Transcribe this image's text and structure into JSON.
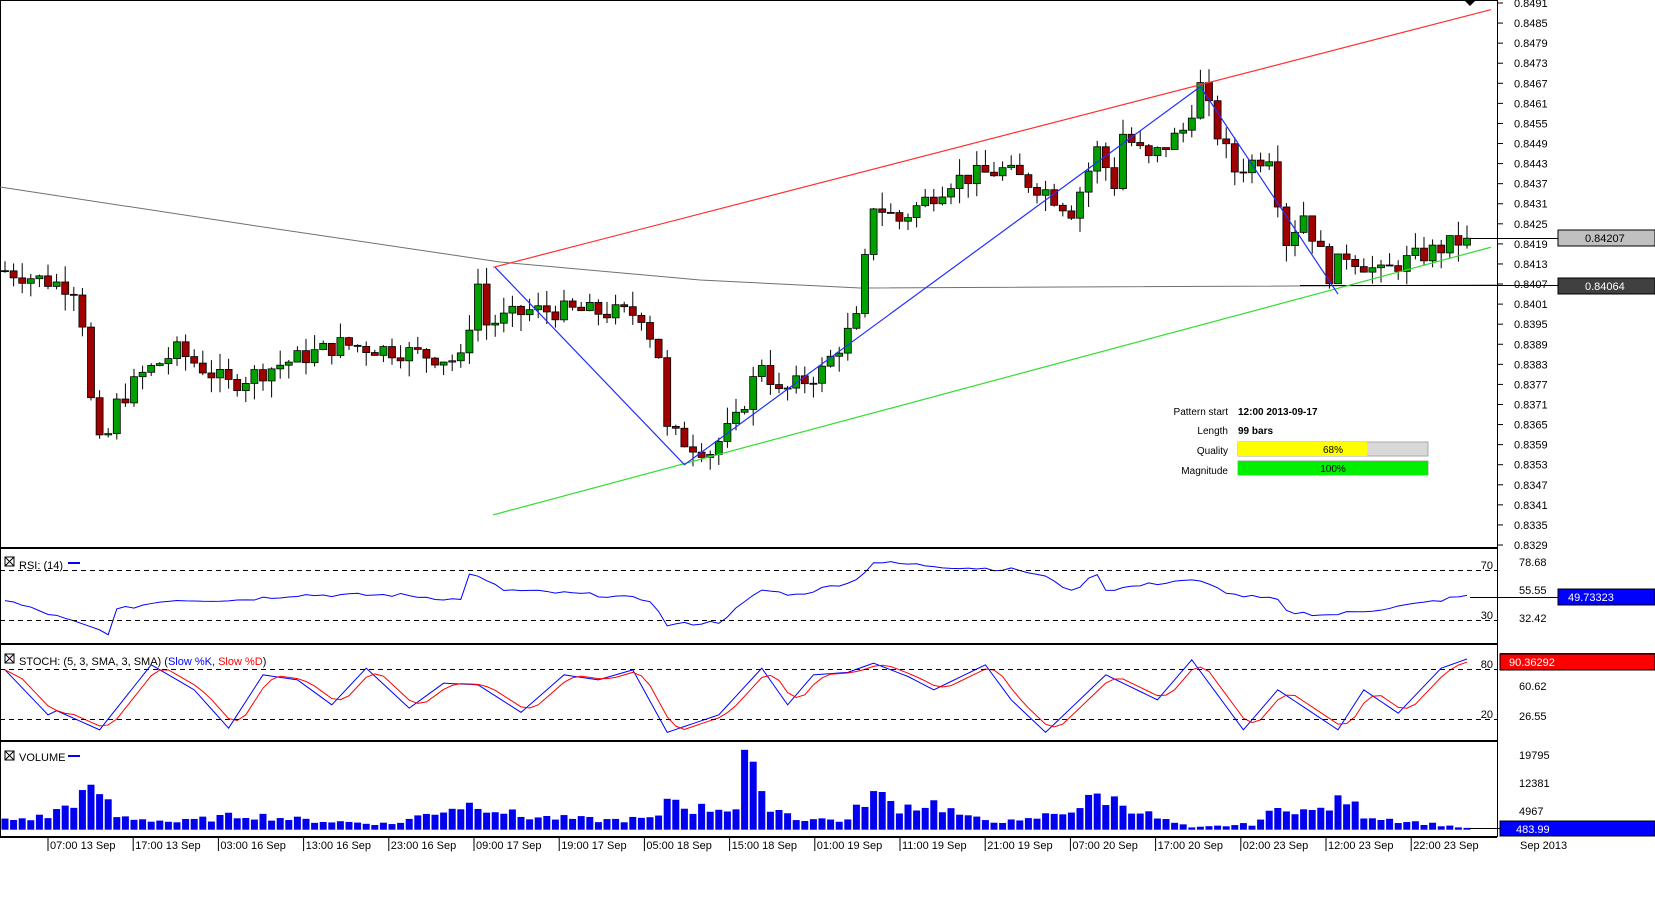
{
  "colors": {
    "up": "#00a000",
    "down": "#a00000",
    "resistance": "#ff3030",
    "support": "#33dd33",
    "zigzag": "#2030ff",
    "ma": "#707070",
    "rsi": "#0000ff",
    "stoch_k": "#0000ff",
    "stoch_d": "#ff0000",
    "volume": "#0000ee"
  },
  "price_axis": {
    "labels": [
      "0.8491",
      "0.8485",
      "0.8479",
      "0.8473",
      "0.8467",
      "0.8461",
      "0.8455",
      "0.8449",
      "0.8443",
      "0.8437",
      "0.8431",
      "0.8425",
      "0.8419",
      "0.8413",
      "0.8407",
      "0.8401",
      "0.8395",
      "0.8389",
      "0.8383",
      "0.8377",
      "0.8371",
      "0.8365",
      "0.8359",
      "0.8353",
      "0.8347",
      "0.8341",
      "0.8335",
      "0.8329"
    ],
    "last_price": "0.84207",
    "ma_value": "0.84064"
  },
  "pattern": {
    "start_label": "Pattern start",
    "start_value": "12:00 2013-09-17",
    "length_label": "Length",
    "length_value": "99 bars",
    "quality_label": "Quality",
    "quality_value": "68%",
    "quality_pct": 68,
    "magnitude_label": "Magnitude",
    "magnitude_value": "100%",
    "magnitude_pct": 100
  },
  "rsi": {
    "title": "RSI: (14)",
    "level_high": "70",
    "level_low": "30",
    "axis": [
      "78.68",
      "55.55",
      "32.42"
    ],
    "value": "49.73323"
  },
  "stoch": {
    "title": "STOCH: (5, 3, SMA, 3, SMA) (",
    "k_label": "Slow %K,",
    "d_label": "Slow %D",
    "close_paren": ")",
    "level_high": "80",
    "level_low": "20",
    "axis": [
      "60.62",
      "26.55"
    ],
    "value": "90.36292"
  },
  "volume": {
    "title": "VOLUME",
    "axis": [
      "19795",
      "12381",
      "4967"
    ],
    "value": "483.99"
  },
  "time_axis": [
    "2013",
    "07:00 13 Sep",
    "17:00 13 Sep",
    "03:00 16 Sep",
    "13:00 16 Sep",
    "23:00 16 Sep",
    "09:00 17 Sep",
    "19:00 17 Sep",
    "05:00 18 Sep",
    "15:00 18 Sep",
    "01:00 19 Sep",
    "11:00 19 Sep",
    "21:00 19 Sep",
    "07:00 20 Sep",
    "17:00 20 Sep",
    "02:00 23 Sep",
    "12:00 23 Sep",
    "22:00 23 Sep"
  ],
  "time_axis_end": "Sep 2013",
  "chart_data": {
    "type": "candlestick",
    "title": "",
    "bars": 171,
    "ylim": [
      0.8329,
      0.8491
    ],
    "close_keypoints": [
      [
        0,
        0.8411
      ],
      [
        8,
        0.8406
      ],
      [
        9,
        0.8396
      ],
      [
        10,
        0.8372
      ],
      [
        11,
        0.8359
      ],
      [
        12,
        0.8362
      ],
      [
        13,
        0.8371
      ],
      [
        16,
        0.838
      ],
      [
        20,
        0.8387
      ],
      [
        26,
        0.8377
      ],
      [
        32,
        0.8383
      ],
      [
        39,
        0.8389
      ],
      [
        46,
        0.8387
      ],
      [
        53,
        0.8384
      ],
      [
        55,
        0.8407
      ],
      [
        56,
        0.8395
      ],
      [
        61,
        0.8399
      ],
      [
        66,
        0.8399
      ],
      [
        74,
        0.8398
      ],
      [
        76,
        0.8386
      ],
      [
        77,
        0.8363
      ],
      [
        79,
        0.836
      ],
      [
        82,
        0.8357
      ],
      [
        85,
        0.8366
      ],
      [
        88,
        0.8384
      ],
      [
        90,
        0.8374
      ],
      [
        95,
        0.8381
      ],
      [
        99,
        0.8396
      ],
      [
        101,
        0.8431
      ],
      [
        104,
        0.8426
      ],
      [
        110,
        0.8438
      ],
      [
        116,
        0.8441
      ],
      [
        121,
        0.8435
      ],
      [
        124,
        0.8429
      ],
      [
        127,
        0.8447
      ],
      [
        129,
        0.8437
      ],
      [
        130,
        0.8452
      ],
      [
        133,
        0.8444
      ],
      [
        137,
        0.8453
      ],
      [
        139,
        0.8466
      ],
      [
        141,
        0.8452
      ],
      [
        143,
        0.8441
      ],
      [
        147,
        0.8446
      ],
      [
        149,
        0.842
      ],
      [
        151,
        0.8428
      ],
      [
        154,
        0.841
      ],
      [
        156,
        0.8416
      ],
      [
        160,
        0.841
      ],
      [
        162,
        0.8413
      ],
      [
        170,
        0.84207
      ]
    ],
    "resistance_line": [
      [
        57,
        0.8412
      ],
      [
        173,
        0.8489
      ]
    ],
    "support_line": [
      [
        57,
        0.8338
      ],
      [
        173,
        0.8418
      ]
    ],
    "zigzag": [
      [
        57,
        0.8412
      ],
      [
        79,
        0.8353
      ],
      [
        139,
        0.8466
      ],
      [
        155,
        0.8404
      ]
    ],
    "rsi_keypoints": [
      [
        0,
        46
      ],
      [
        12,
        19.6
      ],
      [
        13,
        38
      ],
      [
        19,
        46
      ],
      [
        27,
        46
      ],
      [
        34,
        50
      ],
      [
        46,
        50
      ],
      [
        53,
        46
      ],
      [
        54,
        67.6
      ],
      [
        58,
        54
      ],
      [
        69,
        50
      ],
      [
        75,
        46
      ],
      [
        77,
        26
      ],
      [
        83,
        28.4
      ],
      [
        88,
        54
      ],
      [
        92,
        50
      ],
      [
        99,
        62
      ],
      [
        101,
        76.4
      ],
      [
        110,
        72.4
      ],
      [
        118,
        70
      ],
      [
        122,
        62
      ],
      [
        124,
        52.4
      ],
      [
        127,
        67.6
      ],
      [
        128,
        54
      ],
      [
        137,
        62
      ],
      [
        139,
        60.4
      ],
      [
        143,
        50
      ],
      [
        148,
        46
      ],
      [
        149,
        36.4
      ],
      [
        154,
        34
      ],
      [
        159,
        38
      ],
      [
        165,
        43.6
      ],
      [
        170,
        49.73
      ]
    ],
    "stoch_k_keypoints": [
      [
        0,
        79
      ],
      [
        5,
        25
      ],
      [
        6,
        30
      ],
      [
        11,
        7
      ],
      [
        17,
        85
      ],
      [
        22,
        55
      ],
      [
        26,
        9
      ],
      [
        30,
        73
      ],
      [
        34,
        67
      ],
      [
        38,
        37
      ],
      [
        42,
        81
      ],
      [
        47,
        33
      ],
      [
        51,
        63
      ],
      [
        55,
        61
      ],
      [
        60,
        28
      ],
      [
        65,
        73
      ],
      [
        69,
        67
      ],
      [
        73,
        79
      ],
      [
        77,
        4
      ],
      [
        83,
        25
      ],
      [
        88,
        81
      ],
      [
        91,
        37
      ],
      [
        94,
        73
      ],
      [
        98,
        76
      ],
      [
        101,
        87
      ],
      [
        105,
        71
      ],
      [
        108,
        55
      ],
      [
        114,
        85
      ],
      [
        117,
        43
      ],
      [
        121,
        4
      ],
      [
        128,
        73
      ],
      [
        134,
        43
      ],
      [
        138,
        91
      ],
      [
        144,
        7
      ],
      [
        148,
        55
      ],
      [
        155,
        7
      ],
      [
        158,
        55
      ],
      [
        162,
        27
      ],
      [
        167,
        81
      ],
      [
        170,
        92
      ]
    ],
    "volume_keypoints": [
      [
        0,
        2500
      ],
      [
        5,
        3500
      ],
      [
        9,
        9000
      ],
      [
        11,
        10000
      ],
      [
        13,
        3500
      ],
      [
        20,
        2000
      ],
      [
        28,
        4000
      ],
      [
        35,
        2500
      ],
      [
        45,
        1500
      ],
      [
        52,
        6000
      ],
      [
        55,
        7000
      ],
      [
        60,
        3500
      ],
      [
        70,
        2500
      ],
      [
        76,
        3000
      ],
      [
        77,
        9000
      ],
      [
        80,
        5500
      ],
      [
        85,
        6000
      ],
      [
        86,
        21000
      ],
      [
        88,
        8000
      ],
      [
        92,
        3000
      ],
      [
        98,
        2500
      ],
      [
        100,
        8000
      ],
      [
        101,
        9500
      ],
      [
        104,
        6000
      ],
      [
        108,
        7000
      ],
      [
        112,
        3000
      ],
      [
        118,
        2000
      ],
      [
        125,
        6000
      ],
      [
        127,
        9000
      ],
      [
        130,
        7000
      ],
      [
        134,
        3000
      ],
      [
        138,
        500
      ],
      [
        145,
        1500
      ],
      [
        149,
        6500
      ],
      [
        152,
        4500
      ],
      [
        156,
        8000
      ],
      [
        158,
        4000
      ],
      [
        162,
        2500
      ],
      [
        166,
        1500
      ],
      [
        170,
        484
      ]
    ]
  }
}
